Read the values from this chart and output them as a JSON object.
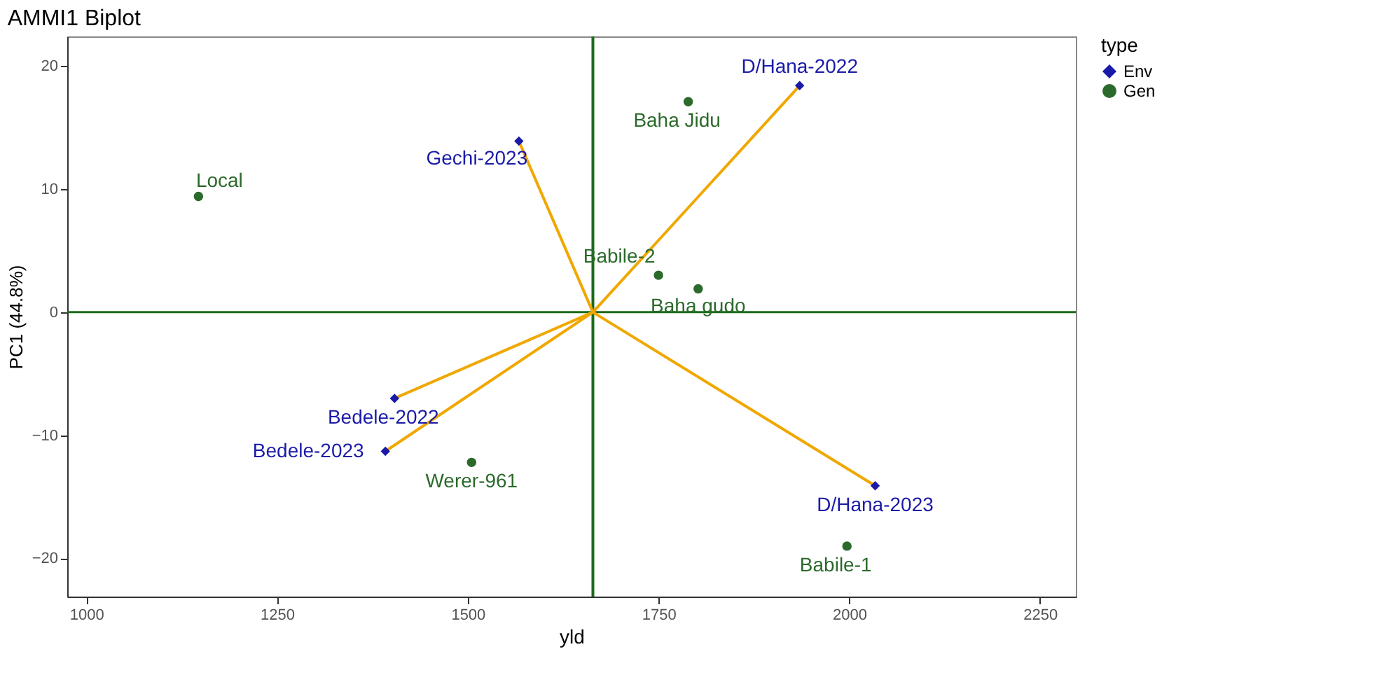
{
  "chart_data": {
    "type": "scatter",
    "title": "AMMI1 Biplot",
    "xlabel": "yld",
    "ylabel": "PC1 (44.8%)",
    "legend_title": "type",
    "xlim": [
      975,
      2297
    ],
    "xticks": [
      1000,
      1250,
      1500,
      1750,
      2000,
      2250
    ],
    "ylim": [
      -23.1,
      22.4
    ],
    "yticks": [
      -20,
      -10,
      0,
      10,
      20
    ],
    "grid": false,
    "legend": "right",
    "series": [
      {
        "name": "Env",
        "marker": "diamond",
        "color": "#1a1aa8",
        "x": [
          1935,
          1567,
          1404,
          1392,
          2034
        ],
        "values": [
          18.4,
          13.9,
          -7.0,
          -11.3,
          -14.1
        ],
        "value_labels": [
          "D/Hana-2022",
          "Gechi-2023",
          "Bedele-2022",
          "Bedele-2023",
          "D/Hana-2023"
        ]
      },
      {
        "name": "Gen",
        "marker": "circle",
        "color": "#2b6a2b",
        "x": [
          1789,
          1147,
          1750,
          1802,
          1505,
          1997
        ],
        "values": [
          17.1,
          9.4,
          3.0,
          1.9,
          -12.2,
          -19.0
        ],
        "value_labels": [
          "Baha Jidu",
          "Local",
          "Babile-2",
          "Baha gudo",
          "Werer-961",
          "Babile-1"
        ]
      },
      {
        "type": "line",
        "color": "#f0a800",
        "x": [
          1664,
          1935,
          1664,
          1567,
          1664,
          1404,
          1664,
          1392,
          1664,
          2034
        ],
        "values": [
          0,
          18.4,
          0,
          13.9,
          0,
          -7.0,
          0,
          -11.3,
          0,
          -14.1
        ]
      }
    ],
    "ref_lines": [
      {
        "axis": "x",
        "value": 1664,
        "color": "#1b6b1b"
      },
      {
        "axis": "y",
        "value": 0,
        "color": "#1b6b1b"
      }
    ]
  }
}
